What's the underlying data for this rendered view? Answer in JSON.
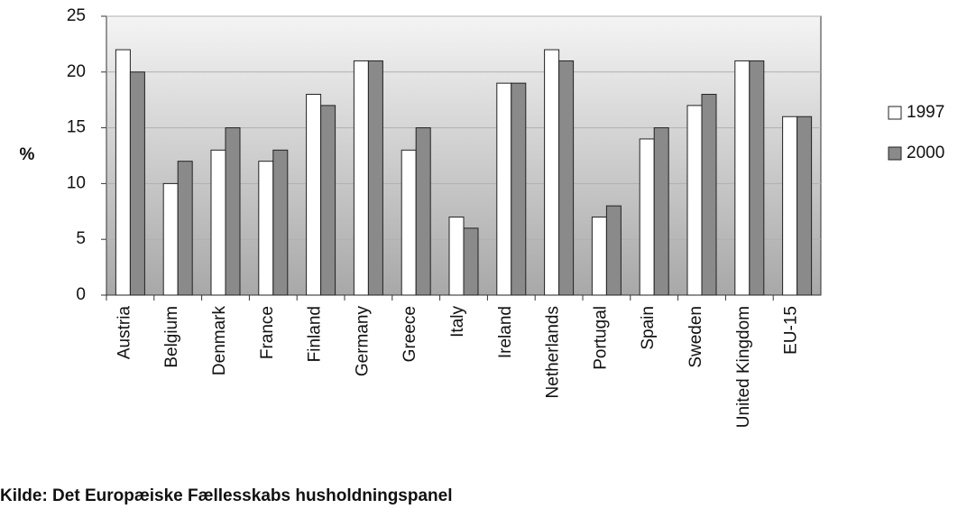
{
  "chart_data": {
    "type": "bar",
    "categories": [
      "Austria",
      "Belgium",
      "Denmark",
      "France",
      "Finland",
      "Germany",
      "Greece",
      "Italy",
      "Ireland",
      "Netherlands",
      "Portugal",
      "Spain",
      "Sweden",
      "United Kingdom",
      "EU-15"
    ],
    "series": [
      {
        "name": "1997",
        "color": "#ffffff",
        "values": [
          22,
          10,
          13,
          12,
          18,
          21,
          13,
          7,
          19,
          22,
          7,
          14,
          17,
          21,
          16
        ]
      },
      {
        "name": "2000",
        "color": "#8a8a8a",
        "values": [
          20,
          12,
          15,
          13,
          17,
          21,
          15,
          6,
          19,
          21,
          8,
          15,
          18,
          21,
          16
        ]
      }
    ],
    "y_label": "%",
    "ylim": [
      0,
      25
    ],
    "yticks": [
      0,
      5,
      10,
      15,
      20,
      25
    ],
    "grid": true,
    "legend": "right",
    "source": "Kilde: Det Europæiske Fællesskabs husholdningspanel"
  }
}
